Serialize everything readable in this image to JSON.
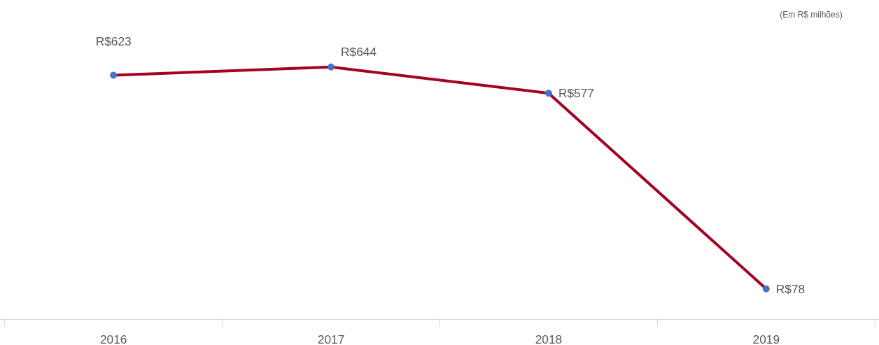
{
  "chart_data": {
    "type": "line",
    "categories": [
      "2016",
      "2017",
      "2018",
      "2019"
    ],
    "series": [
      {
        "color": "#a50021",
        "colors": [
          "#4472c4",
          "#4472c4",
          "#4472c4",
          "#4472c4"
        ],
        "values": [
          623,
          644,
          577,
          78
        ],
        "value_labels": [
          "R$623",
          "R$644",
          "R$577",
          "R$78"
        ]
      }
    ],
    "annotations": [
      "(Em R$ milhões)"
    ],
    "marker": "circle",
    "line_style": "solid",
    "grid": false
  }
}
